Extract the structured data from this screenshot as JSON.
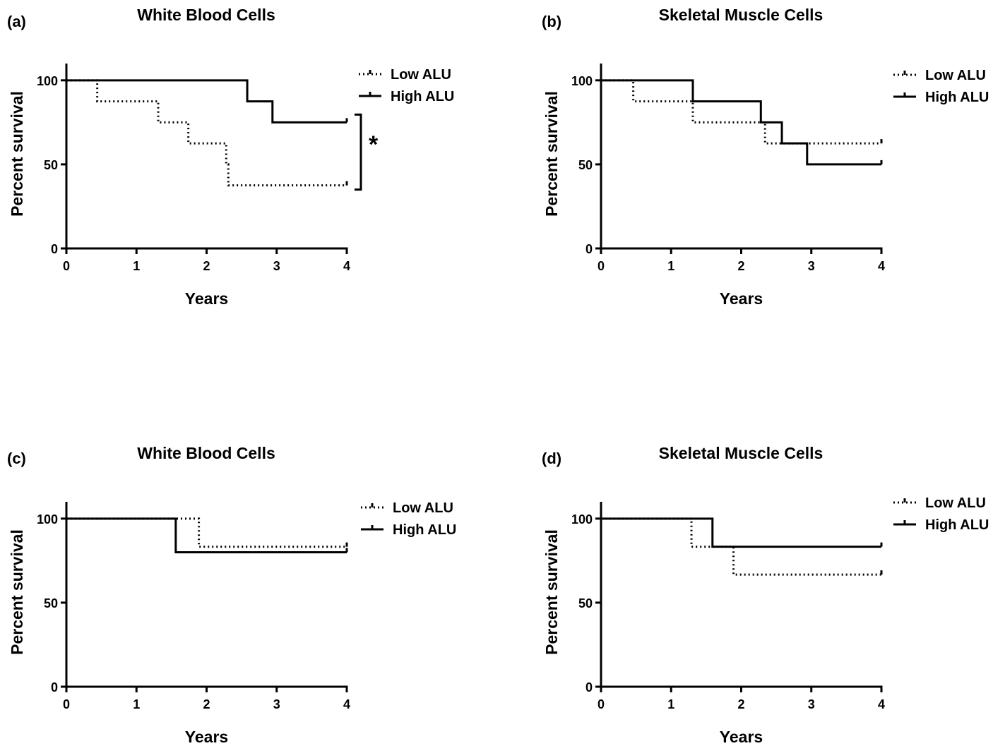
{
  "chart_data": [
    {
      "panel": "(a)",
      "type": "line",
      "title": "White Blood Cells",
      "xlabel": "Years",
      "ylabel": "Percent survival",
      "xlim": [
        0,
        4
      ],
      "ylim": [
        0,
        110
      ],
      "xticks": [
        "0",
        "1",
        "2",
        "3",
        "4"
      ],
      "yticks": [
        "0",
        "50",
        "100"
      ],
      "legend": "top-right",
      "annotation": "*",
      "series": [
        {
          "name": "Low ALU",
          "style": "dotted",
          "steps": [
            [
              0,
              100
            ],
            [
              0.44,
              87.5
            ],
            [
              1.31,
              75
            ],
            [
              1.74,
              62.5
            ],
            [
              2.28,
              50
            ],
            [
              2.31,
              37.5
            ],
            [
              4.0,
              37.5
            ]
          ]
        },
        {
          "name": "High ALU",
          "style": "solid",
          "steps": [
            [
              0,
              100
            ],
            [
              2.58,
              87.5
            ],
            [
              2.94,
              75
            ],
            [
              4.0,
              75
            ]
          ]
        }
      ]
    },
    {
      "panel": "(b)",
      "type": "line",
      "title": "Skeletal Muscle Cells",
      "xlabel": "Years",
      "ylabel": "Percent survival",
      "xlim": [
        0,
        4
      ],
      "ylim": [
        0,
        110
      ],
      "xticks": [
        "0",
        "1",
        "2",
        "3",
        "4"
      ],
      "yticks": [
        "0",
        "50",
        "100"
      ],
      "legend": "top-right",
      "series": [
        {
          "name": "Low ALU",
          "style": "dotted",
          "steps": [
            [
              0,
              100
            ],
            [
              0.46,
              87.5
            ],
            [
              1.31,
              75
            ],
            [
              2.34,
              62.5
            ],
            [
              4.0,
              62.5
            ]
          ]
        },
        {
          "name": "High ALU",
          "style": "solid",
          "steps": [
            [
              0,
              100
            ],
            [
              1.31,
              87.5
            ],
            [
              2.28,
              75
            ],
            [
              2.58,
              62.5
            ],
            [
              2.94,
              50
            ],
            [
              4.0,
              50
            ]
          ]
        }
      ]
    },
    {
      "panel": "(c)",
      "type": "line",
      "title": "White Blood Cells",
      "xlabel": "Years",
      "ylabel": "Percent survival",
      "xlim": [
        0,
        4
      ],
      "ylim": [
        0,
        110
      ],
      "xticks": [
        "0",
        "1",
        "2",
        "3",
        "4"
      ],
      "yticks": [
        "0",
        "50",
        "100"
      ],
      "legend": "top-right",
      "series": [
        {
          "name": "Low ALU",
          "style": "dotted",
          "steps": [
            [
              0,
              100
            ],
            [
              1.89,
              83.3
            ],
            [
              4.0,
              83.3
            ]
          ]
        },
        {
          "name": "High ALU",
          "style": "solid",
          "steps": [
            [
              0,
              100
            ],
            [
              1.56,
              80
            ],
            [
              4.0,
              80
            ]
          ]
        }
      ]
    },
    {
      "panel": "(d)",
      "type": "line",
      "title": "Skeletal Muscle Cells",
      "xlabel": "Years",
      "ylabel": "Percent survival",
      "xlim": [
        0,
        4
      ],
      "ylim": [
        0,
        110
      ],
      "xticks": [
        "0",
        "1",
        "2",
        "3",
        "4"
      ],
      "yticks": [
        "0",
        "50",
        "100"
      ],
      "legend": "top-right",
      "series": [
        {
          "name": "Low ALU",
          "style": "dotted",
          "steps": [
            [
              0,
              100
            ],
            [
              1.29,
              83.3
            ],
            [
              1.89,
              66.7
            ],
            [
              4.0,
              66.7
            ]
          ]
        },
        {
          "name": "High ALU",
          "style": "solid",
          "steps": [
            [
              0,
              100
            ],
            [
              1.59,
              83.3
            ],
            [
              4.0,
              83.3
            ]
          ]
        }
      ]
    }
  ]
}
